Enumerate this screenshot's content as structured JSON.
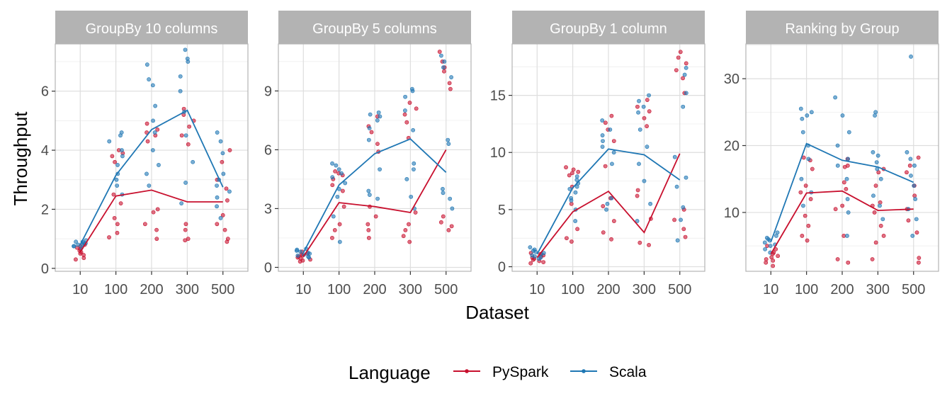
{
  "chart_data": {
    "type": "line",
    "xlabel": "Dataset",
    "ylabel": "Throughput",
    "categories": [
      "10",
      "100",
      "200",
      "300",
      "500"
    ],
    "legend": {
      "title": "Language",
      "position": "bottom",
      "entries": [
        "PySpark",
        "Scala"
      ]
    },
    "colors": {
      "PySpark": "#c8102e",
      "Scala": "#1f77b4"
    },
    "grid": true,
    "panels": [
      {
        "title": "GroupBy 10 columns",
        "ylim": [
          -0.1,
          7.6
        ],
        "yticks": [
          0,
          2,
          4,
          6
        ],
        "series": [
          {
            "name": "PySpark",
            "mean": [
              0.55,
              2.45,
              2.65,
              2.25,
              2.25
            ],
            "points": [
              [
                0.3,
                0.45,
                0.55,
                0.6,
                0.7,
                0.8,
                0.35,
                0.5,
                0.65,
                0.75
              ],
              [
                1.05,
                1.2,
                1.5,
                1.7,
                2.2,
                2.5,
                3.6,
                3.8,
                3.9,
                4.0
              ],
              [
                1.0,
                1.3,
                1.5,
                1.9,
                2.0,
                4.3,
                4.5,
                4.6,
                4.7,
                4.9
              ],
              [
                0.95,
                1.0,
                1.3,
                1.5,
                4.2,
                4.5,
                4.8,
                5.0,
                5.2,
                5.4
              ],
              [
                0.9,
                1.0,
                1.3,
                1.5,
                1.8,
                2.3,
                2.7,
                3.0,
                3.6,
                4.0
              ]
            ]
          },
          {
            "name": "Scala",
            "mean": [
              0.8,
              3.15,
              4.7,
              5.35,
              2.75
            ],
            "points": [
              [
                0.7,
                0.75,
                0.8,
                0.85,
                0.9,
                0.95,
                0.8,
                0.85,
                0.75,
                0.9
              ],
              [
                2.5,
                2.8,
                3.0,
                3.2,
                3.5,
                3.8,
                4.0,
                4.3,
                4.5,
                4.6
              ],
              [
                2.8,
                3.2,
                3.5,
                4.0,
                4.6,
                5.0,
                5.5,
                6.2,
                6.4,
                6.9
              ],
              [
                2.2,
                2.9,
                3.6,
                4.5,
                5.3,
                6.0,
                6.5,
                7.0,
                7.1,
                7.4
              ],
              [
                1.7,
                2.1,
                2.4,
                2.6,
                2.8,
                3.0,
                3.2,
                3.9,
                4.3,
                4.6
              ]
            ]
          }
        ]
      },
      {
        "title": "GroupBy 5 columns",
        "ylim": [
          -0.2,
          11.4
        ],
        "yticks": [
          0,
          3,
          6,
          9
        ],
        "series": [
          {
            "name": "PySpark",
            "mean": [
              0.55,
              3.3,
              3.1,
              2.8,
              6.0
            ],
            "points": [
              [
                0.3,
                0.4,
                0.5,
                0.6,
                0.7,
                0.8,
                0.45,
                0.55,
                0.65,
                0.35
              ],
              [
                1.5,
                1.9,
                2.2,
                3.1,
                3.9,
                4.2,
                4.5,
                4.7,
                4.8,
                4.9
              ],
              [
                1.5,
                1.9,
                2.2,
                2.6,
                3.1,
                5.9,
                6.3,
                6.9,
                7.2,
                7.7
              ],
              [
                1.3,
                1.6,
                1.9,
                2.2,
                2.8,
                6.6,
                7.4,
                7.8,
                8.1,
                8.4
              ],
              [
                1.9,
                2.1,
                2.3,
                2.6,
                9.1,
                9.4,
                10.0,
                10.2,
                10.5,
                11.0
              ]
            ]
          },
          {
            "name": "Scala",
            "mean": [
              0.75,
              4.2,
              5.8,
              6.55,
              4.85
            ],
            "points": [
              [
                0.5,
                0.6,
                0.7,
                0.8,
                0.9,
                0.95,
                0.75,
                0.85,
                0.65,
                0.55
              ],
              [
                1.3,
                2.6,
                3.6,
                4.0,
                4.3,
                4.8,
                5.0,
                5.2,
                5.3,
                4.6
              ],
              [
                3.5,
                3.7,
                3.9,
                5.0,
                6.5,
                7.1,
                7.5,
                7.7,
                7.8,
                7.9
              ],
              [
                3.0,
                3.6,
                4.5,
                5.0,
                5.3,
                7.0,
                8.7,
                9.0,
                9.1,
                8.0
              ],
              [
                3.0,
                3.5,
                3.8,
                4.0,
                6.3,
                6.5,
                10.2,
                10.5,
                10.8,
                9.7
              ]
            ]
          }
        ]
      },
      {
        "title": "GroupBy 1 column",
        "ylim": [
          -0.4,
          19.5
        ],
        "yticks": [
          0,
          5,
          10,
          15
        ],
        "series": [
          {
            "name": "PySpark",
            "mean": [
              0.8,
              4.8,
              6.6,
              3.0,
              9.9
            ],
            "points": [
              [
                0.3,
                0.5,
                0.7,
                0.8,
                1.0,
                1.1,
                0.6,
                0.9,
                0.4,
                1.2
              ],
              [
                2.2,
                2.5,
                3.3,
                5.5,
                7.0,
                8.0,
                8.3,
                8.5,
                8.7,
                8.2
              ],
              [
                2.4,
                3.0,
                4.0,
                5.3,
                6.0,
                8.8,
                11.0,
                12.0,
                12.6,
                13.2
              ],
              [
                1.9,
                2.1,
                4.2,
                6.2,
                6.7,
                12.3,
                13.0,
                14.0,
                14.6,
                13.6
              ],
              [
                2.6,
                3.3,
                4.1,
                5.0,
                15.2,
                16.5,
                17.2,
                17.8,
                18.3,
                18.8
              ]
            ]
          },
          {
            "name": "Scala",
            "mean": [
              1.1,
              6.9,
              10.3,
              9.8,
              7.6
            ],
            "points": [
              [
                0.7,
                0.9,
                1.1,
                1.3,
                1.5,
                1.7,
                1.0,
                1.2,
                0.8,
                1.4
              ],
              [
                4.0,
                5.0,
                6.0,
                6.5,
                7.0,
                7.3,
                7.6,
                7.9,
                6.8,
                5.8
              ],
              [
                5.0,
                5.5,
                6.0,
                9.0,
                10.5,
                11.0,
                11.5,
                12.0,
                12.8,
                10.0
              ],
              [
                4.0,
                5.5,
                7.5,
                9.0,
                10.5,
                12.0,
                13.5,
                14.5,
                15.0,
                14.0
              ],
              [
                2.3,
                4.1,
                5.2,
                7.0,
                7.8,
                9.6,
                14.0,
                15.2,
                16.8,
                17.4
              ]
            ]
          }
        ]
      },
      {
        "title": "Ranking by Group",
        "ylim": [
          1.2,
          35.2
        ],
        "yticks": [
          10,
          20,
          30
        ],
        "series": [
          {
            "name": "PySpark",
            "mean": [
              3.8,
              12.9,
              13.2,
              10.3,
              10.5
            ],
            "points": [
              [
                2.0,
                2.5,
                3.0,
                3.5,
                4.0,
                4.5,
                5.0,
                3.3,
                2.8,
                3.8
              ],
              [
                5.8,
                6.5,
                8.0,
                9.5,
                12.0,
                13.0,
                14.0,
                16.5,
                17.8,
                18.2
              ],
              [
                2.5,
                3.0,
                6.5,
                10.5,
                11.0,
                13.5,
                14.5,
                16.8,
                17.0,
                18.0
              ],
              [
                3.0,
                5.5,
                6.5,
                8.0,
                10.0,
                11.0,
                11.5,
                14.0,
                16.0,
                16.5
              ],
              [
                2.5,
                3.2,
                7.0,
                8.8,
                10.5,
                12.5,
                14.0,
                16.0,
                17.0,
                18.2
              ]
            ]
          },
          {
            "name": "Scala",
            "mean": [
              5.6,
              20.3,
              17.8,
              16.8,
              14.5
            ],
            "points": [
              [
                4.0,
                4.5,
                5.0,
                5.5,
                6.0,
                6.5,
                7.0,
                5.2,
                5.8,
                6.2
              ],
              [
                11.0,
                13.0,
                15.0,
                18.0,
                20.0,
                22.0,
                24.0,
                25.0,
                25.5,
                24.5
              ],
              [
                6.5,
                10.0,
                12.0,
                15.0,
                17.0,
                18.0,
                20.0,
                22.0,
                24.5,
                27.2
              ],
              [
                9.0,
                11.0,
                12.5,
                15.0,
                16.5,
                17.5,
                18.5,
                19.0,
                24.5,
                25.0
              ],
              [
                6.5,
                9.0,
                10.5,
                12.0,
                14.0,
                15.5,
                17.0,
                18.0,
                19.0,
                33.3
              ]
            ]
          }
        ]
      }
    ]
  }
}
